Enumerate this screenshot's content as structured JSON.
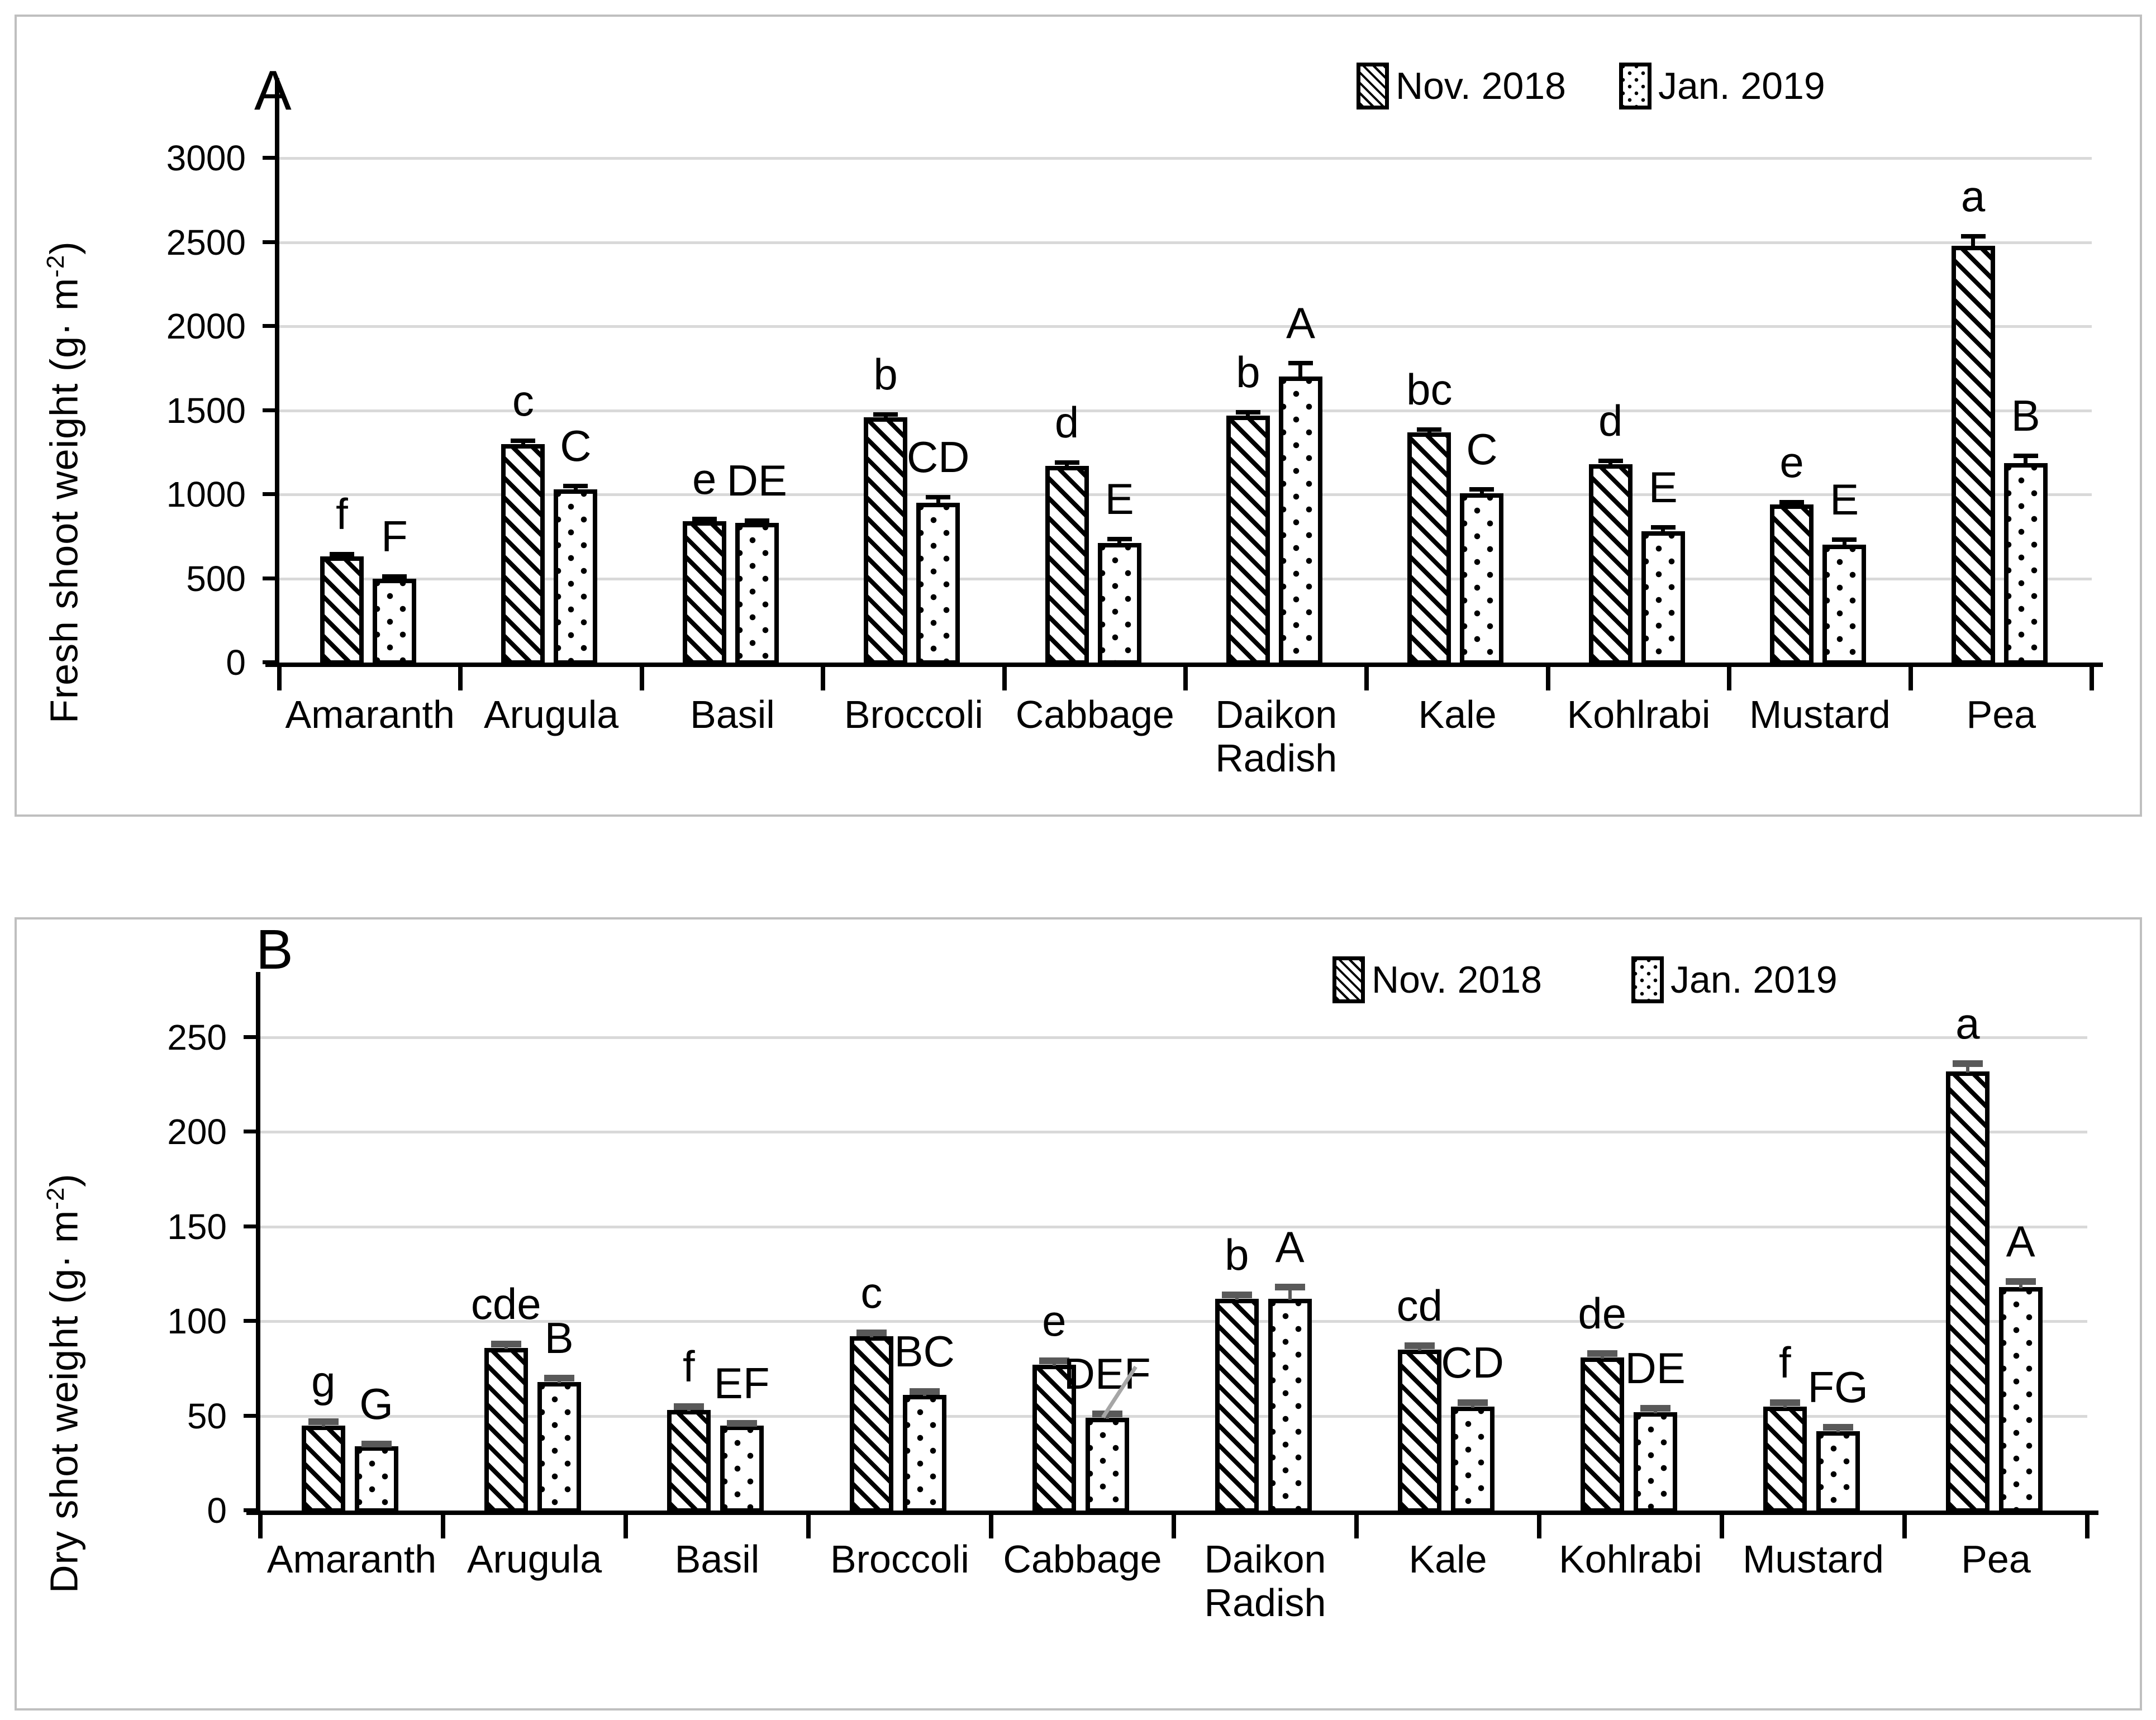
{
  "figure_title": "",
  "colors": {
    "bar_outline": "#000000",
    "gridline": "#d9d9d9",
    "panel_border": "#bfbfbf",
    "error_bar_panel_a": "#000000",
    "error_bar_panel_b": "#595959",
    "annotation_line": "#a6a6a6",
    "background": "#ffffff"
  },
  "chart_data": [
    {
      "type": "bar",
      "panel": "A",
      "title": "",
      "xlabel": "",
      "ylabel": "Fresh shoot weight (g· m-2)",
      "ylabel_parts": {
        "prefix": "Fresh shoot weight (g· m",
        "sup": "-2",
        "suffix": ")"
      },
      "ylim": [
        0,
        3000
      ],
      "yticks": [
        0,
        500,
        1000,
        1500,
        2000,
        2500,
        3000
      ],
      "grid": true,
      "legend_position": "top-right",
      "legend": [
        "Nov. 2018",
        "Jan. 2019"
      ],
      "categories": [
        "Amaranth",
        "Arugula",
        "Basil",
        "Broccoli",
        "Cabbage",
        "Daikon Radish",
        "Kale",
        "Kohlrabi",
        "Mustard",
        "Pea"
      ],
      "series": [
        {
          "name": "Nov. 2018",
          "pattern": "diagonal-hatch",
          "values": [
            630,
            1300,
            840,
            1460,
            1170,
            1470,
            1370,
            1180,
            940,
            2480
          ],
          "errors": [
            15,
            20,
            15,
            15,
            20,
            20,
            15,
            20,
            15,
            55
          ],
          "letters": [
            "f",
            "c",
            "e",
            "b",
            "d",
            "b",
            "bc",
            "d",
            "e",
            "a"
          ]
        },
        {
          "name": "Jan. 2019",
          "pattern": "dots",
          "values": [
            500,
            1030,
            830,
            950,
            710,
            1700,
            1005,
            780,
            700,
            1185
          ],
          "errors": [
            12,
            20,
            15,
            35,
            25,
            80,
            25,
            25,
            30,
            45
          ],
          "letters": [
            "F",
            "C",
            "DE",
            "CD",
            "E",
            "A",
            "C",
            "E",
            "E",
            "B"
          ]
        }
      ]
    },
    {
      "type": "bar",
      "panel": "B",
      "title": "",
      "xlabel": "",
      "ylabel": "Dry shot weight (g· m-2)",
      "ylabel_parts": {
        "prefix": "Dry shot weight (g· m",
        "sup": "-2",
        "suffix": ")"
      },
      "ylim": [
        0,
        250
      ],
      "yticks": [
        0,
        50,
        100,
        150,
        200,
        250
      ],
      "grid": true,
      "legend_position": "top-right",
      "legend": [
        "Nov. 2018",
        "Jan. 2019"
      ],
      "categories": [
        "Amaranth",
        "Arugula",
        "Basil",
        "Broccoli",
        "Cabbage",
        "Daikon Radish",
        "Kale",
        "Kohlrabi",
        "Mustard",
        "Pea"
      ],
      "series": [
        {
          "name": "Nov. 2018",
          "pattern": "diagonal-hatch",
          "values": [
            45,
            86,
            53,
            92,
            77,
            112,
            85,
            81,
            55,
            232
          ],
          "errors": [
            2,
            2,
            2,
            2,
            2,
            2,
            2,
            2,
            2,
            4
          ],
          "letters": [
            "g",
            "cde",
            "f",
            "c",
            "e",
            "b",
            "cd",
            "de",
            "f",
            "a"
          ]
        },
        {
          "name": "Jan. 2019",
          "pattern": "dots",
          "values": [
            34,
            68,
            45,
            61,
            49,
            112,
            55,
            52,
            42,
            118
          ],
          "errors": [
            1,
            2,
            1,
            2,
            2,
            6,
            2,
            2,
            2,
            3
          ],
          "letters": [
            "G",
            "B",
            "EF",
            "BC",
            "DEF",
            "A",
            "CD",
            "DE",
            "FG",
            "A"
          ]
        }
      ],
      "annotation": {
        "type": "leader-line",
        "category": "Cabbage",
        "series": "Jan. 2019"
      }
    }
  ]
}
